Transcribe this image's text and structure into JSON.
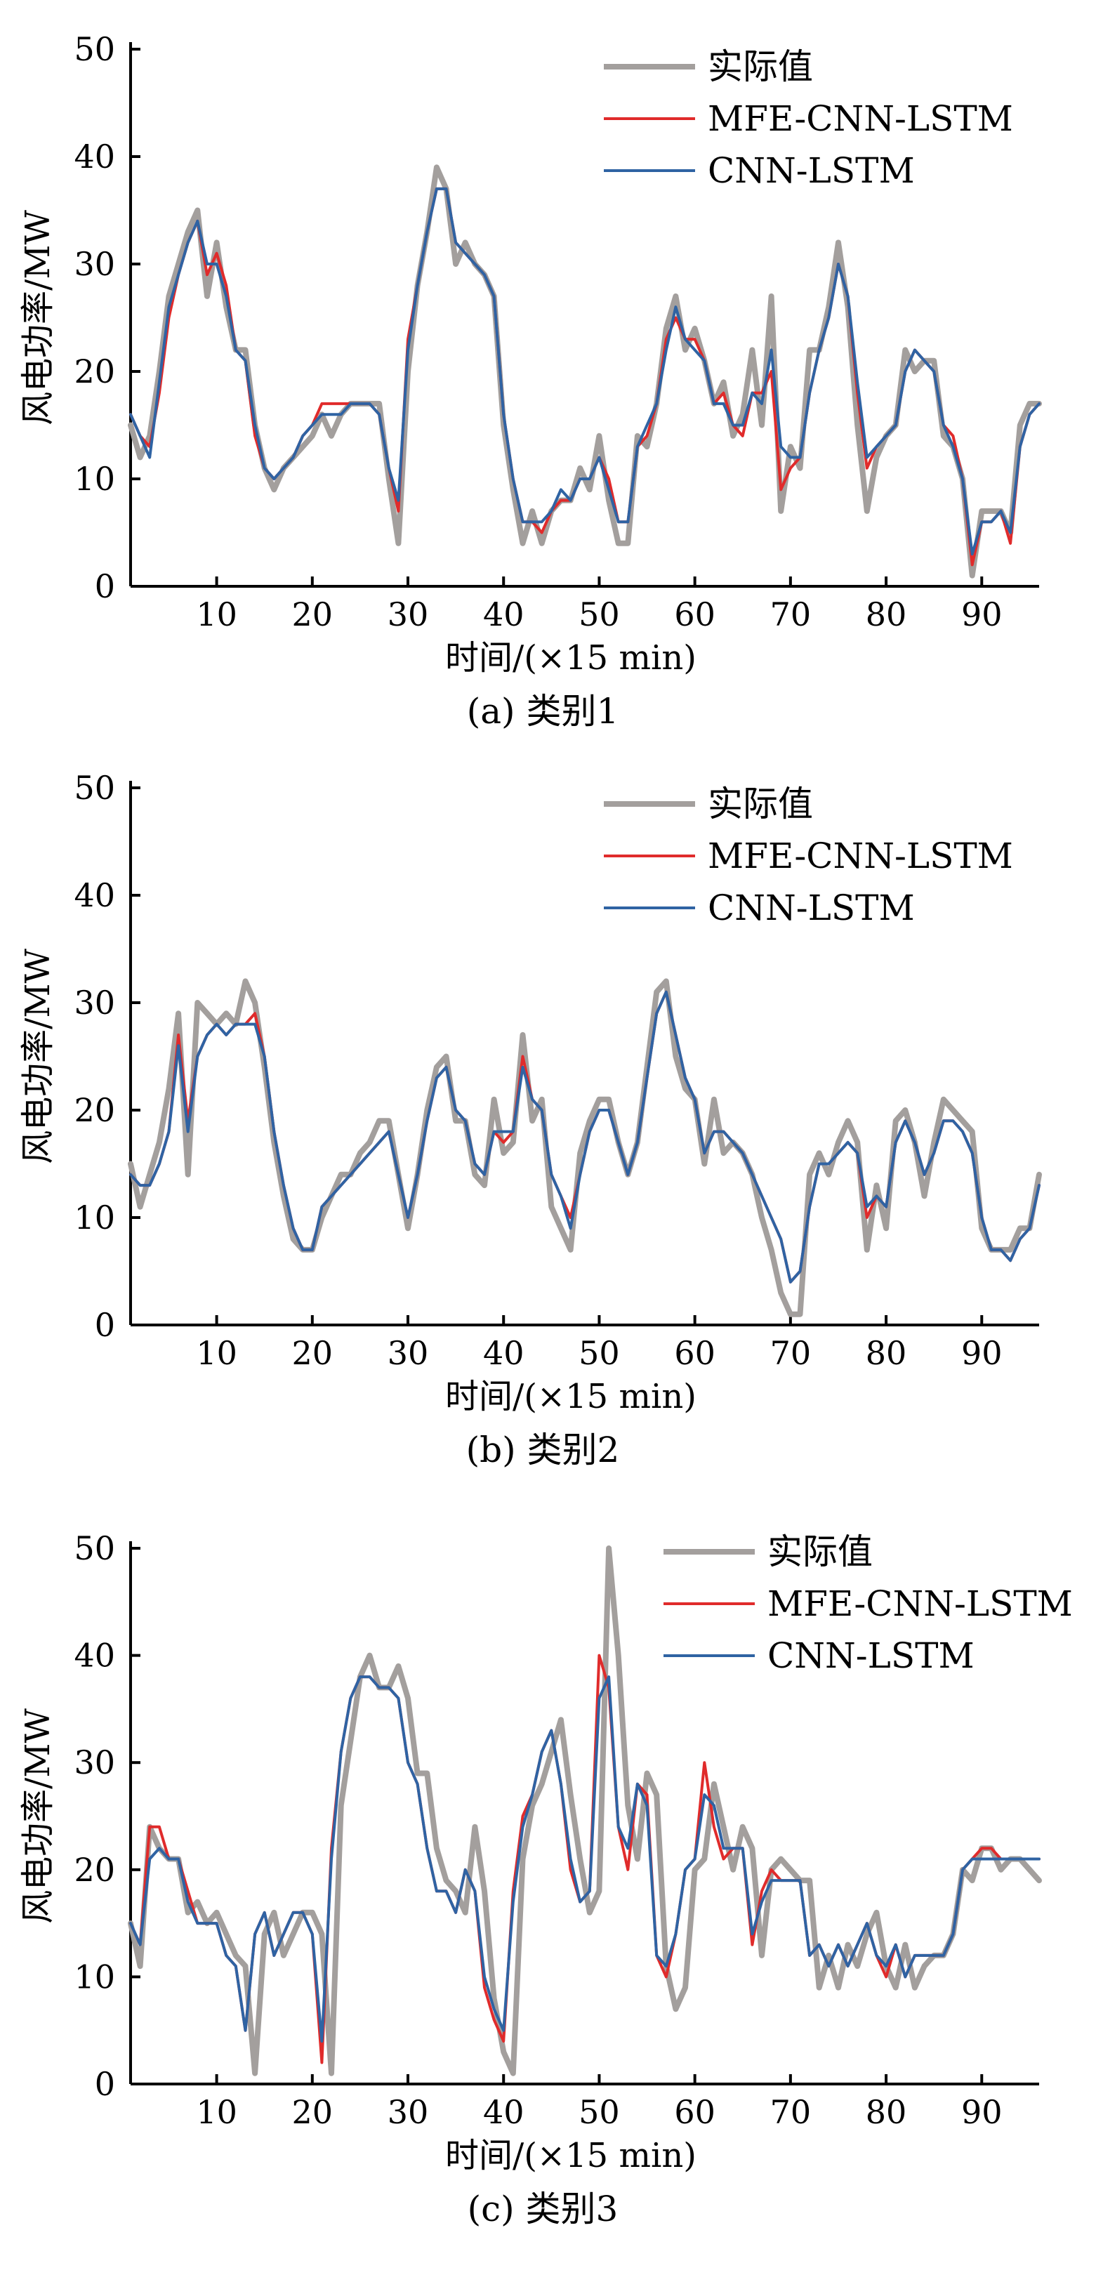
{
  "figure": {
    "captions": [
      "(a) 类别1",
      "(b) 类别2",
      "(c) 类别3"
    ]
  },
  "colors": {
    "actual": "#a39f9d",
    "mfe": "#e02b2b",
    "cnn": "#2f63a3"
  },
  "chart_data": [
    {
      "type": "line",
      "caption": "(a) 类别1",
      "xlabel": "时间/(×15 min)",
      "ylabel": "风电功率/MW",
      "xlim": [
        1,
        96
      ],
      "ylim": [
        0,
        50
      ],
      "xticks": [
        10,
        20,
        30,
        40,
        50,
        60,
        70,
        80,
        90
      ],
      "yticks": [
        0,
        10,
        20,
        30,
        40,
        50
      ],
      "legend": "top-right",
      "grid": false,
      "x": [
        1,
        2,
        3,
        4,
        5,
        6,
        7,
        8,
        9,
        10,
        11,
        12,
        13,
        14,
        15,
        16,
        17,
        18,
        19,
        20,
        21,
        22,
        23,
        24,
        25,
        26,
        27,
        28,
        29,
        30,
        31,
        32,
        33,
        34,
        35,
        36,
        37,
        38,
        39,
        40,
        41,
        42,
        43,
        44,
        45,
        46,
        47,
        48,
        49,
        50,
        51,
        52,
        53,
        54,
        55,
        56,
        57,
        58,
        59,
        60,
        61,
        62,
        63,
        64,
        65,
        66,
        67,
        68,
        69,
        70,
        71,
        72,
        73,
        74,
        75,
        76,
        77,
        78,
        79,
        80,
        81,
        82,
        83,
        84,
        85,
        86,
        87,
        88,
        89,
        90,
        91,
        92,
        93,
        94,
        95,
        96
      ],
      "series": [
        {
          "name": "实际值",
          "values": [
            15,
            12,
            14,
            20,
            27,
            30,
            33,
            35,
            27,
            32,
            26,
            22,
            22,
            15,
            11,
            9,
            11,
            12,
            13,
            14,
            16,
            14,
            16,
            17,
            17,
            17,
            17,
            10,
            4,
            20,
            28,
            33,
            39,
            37,
            30,
            32,
            30,
            29,
            27,
            15,
            9,
            4,
            7,
            4,
            7,
            8,
            8,
            11,
            9,
            14,
            8,
            4,
            4,
            14,
            13,
            17,
            24,
            27,
            22,
            24,
            21,
            17,
            19,
            14,
            16,
            22,
            15,
            27,
            7,
            13,
            11,
            22,
            22,
            26,
            32,
            26,
            15,
            7,
            12,
            14,
            15,
            22,
            20,
            21,
            21,
            14,
            13,
            10,
            1,
            7,
            7,
            7,
            5,
            15,
            17,
            17
          ]
        },
        {
          "name": "MFE-CNN-LSTM",
          "values": [
            16,
            14,
            13,
            18,
            25,
            29,
            32,
            34,
            29,
            31,
            28,
            22,
            21,
            14,
            11,
            10,
            11,
            12,
            14,
            15,
            17,
            17,
            17,
            17,
            17,
            17,
            16,
            11,
            7,
            23,
            28,
            33,
            37,
            37,
            32,
            31,
            30,
            29,
            27,
            16,
            10,
            6,
            6,
            5,
            7,
            8,
            8,
            10,
            10,
            12,
            10,
            6,
            6,
            13,
            14,
            17,
            23,
            25,
            23,
            23,
            21,
            17,
            18,
            15,
            14,
            18,
            18,
            20,
            9,
            11,
            12,
            18,
            22,
            25,
            30,
            27,
            18,
            11,
            13,
            14,
            15,
            20,
            22,
            21,
            20,
            15,
            14,
            10,
            2,
            6,
            6,
            7,
            4,
            13,
            16,
            17
          ]
        },
        {
          "name": "CNN-LSTM",
          "values": [
            16,
            14,
            12,
            19,
            26,
            29,
            32,
            34,
            30,
            30,
            27,
            22,
            21,
            15,
            11,
            10,
            11,
            12,
            14,
            15,
            16,
            16,
            16,
            17,
            17,
            17,
            16,
            11,
            8,
            22,
            28,
            33,
            37,
            37,
            32,
            31,
            30,
            29,
            27,
            16,
            10,
            6,
            6,
            6,
            7,
            9,
            8,
            10,
            10,
            12,
            9,
            6,
            6,
            13,
            15,
            17,
            22,
            26,
            23,
            22,
            21,
            17,
            17,
            15,
            15,
            18,
            17,
            22,
            13,
            12,
            12,
            18,
            22,
            25,
            30,
            27,
            19,
            12,
            13,
            14,
            15,
            20,
            22,
            21,
            20,
            15,
            13,
            10,
            3,
            6,
            6,
            7,
            5,
            13,
            16,
            17
          ]
        }
      ]
    },
    {
      "type": "line",
      "caption": "(b) 类别2",
      "xlabel": "时间/(×15 min)",
      "ylabel": "风电功率/MW",
      "xlim": [
        1,
        96
      ],
      "ylim": [
        0,
        50
      ],
      "xticks": [
        10,
        20,
        30,
        40,
        50,
        60,
        70,
        80,
        90
      ],
      "yticks": [
        0,
        10,
        20,
        30,
        40,
        50
      ],
      "legend": "top-right",
      "grid": false,
      "x": [
        1,
        2,
        3,
        4,
        5,
        6,
        7,
        8,
        9,
        10,
        11,
        12,
        13,
        14,
        15,
        16,
        17,
        18,
        19,
        20,
        21,
        22,
        23,
        24,
        25,
        26,
        27,
        28,
        29,
        30,
        31,
        32,
        33,
        34,
        35,
        36,
        37,
        38,
        39,
        40,
        41,
        42,
        43,
        44,
        45,
        46,
        47,
        48,
        49,
        50,
        51,
        52,
        53,
        54,
        55,
        56,
        57,
        58,
        59,
        60,
        61,
        62,
        63,
        64,
        65,
        66,
        67,
        68,
        69,
        70,
        71,
        72,
        73,
        74,
        75,
        76,
        77,
        78,
        79,
        80,
        81,
        82,
        83,
        84,
        85,
        86,
        87,
        88,
        89,
        90,
        91,
        92,
        93,
        94,
        95,
        96
      ],
      "series": [
        {
          "name": "实际值",
          "values": [
            15,
            11,
            14,
            17,
            22,
            29,
            14,
            30,
            29,
            28,
            29,
            28,
            32,
            30,
            24,
            17,
            12,
            8,
            7,
            7,
            10,
            12,
            14,
            14,
            16,
            17,
            19,
            19,
            14,
            9,
            14,
            20,
            24,
            25,
            19,
            19,
            14,
            13,
            21,
            16,
            17,
            27,
            19,
            21,
            11,
            9,
            7,
            16,
            19,
            21,
            21,
            17,
            14,
            17,
            24,
            31,
            32,
            25,
            22,
            21,
            15,
            21,
            16,
            17,
            16,
            14,
            10,
            7,
            3,
            1,
            1,
            14,
            16,
            14,
            17,
            19,
            17,
            7,
            13,
            9,
            19,
            20,
            17,
            12,
            17,
            21,
            20,
            19,
            18,
            9,
            7,
            7,
            7,
            9,
            9,
            14
          ]
        },
        {
          "name": "MFE-CNN-LSTM",
          "values": [
            14,
            13,
            13,
            15,
            18,
            27,
            19,
            25,
            27,
            28,
            27,
            28,
            28,
            29,
            25,
            18,
            13,
            9,
            7,
            7,
            11,
            12,
            13,
            14,
            15,
            16,
            17,
            18,
            14,
            10,
            14,
            19,
            23,
            24,
            20,
            19,
            15,
            14,
            18,
            17,
            18,
            25,
            21,
            20,
            14,
            12,
            10,
            14,
            18,
            20,
            20,
            17,
            14,
            17,
            23,
            29,
            31,
            27,
            23,
            21,
            16,
            18,
            18,
            17,
            16,
            14,
            12,
            10,
            8,
            4,
            5,
            11,
            15,
            15,
            16,
            17,
            16,
            10,
            12,
            11,
            17,
            19,
            17,
            14,
            16,
            19,
            19,
            18,
            16,
            10,
            7,
            7,
            6,
            8,
            9,
            13
          ]
        },
        {
          "name": "CNN-LSTM",
          "values": [
            14,
            13,
            13,
            15,
            18,
            26,
            18,
            25,
            27,
            28,
            27,
            28,
            28,
            28,
            25,
            18,
            13,
            9,
            7,
            7,
            11,
            12,
            13,
            14,
            15,
            16,
            17,
            18,
            14,
            10,
            14,
            19,
            23,
            24,
            20,
            19,
            15,
            14,
            18,
            18,
            18,
            24,
            21,
            20,
            14,
            12,
            9,
            14,
            18,
            20,
            20,
            17,
            14,
            17,
            23,
            29,
            31,
            27,
            23,
            21,
            16,
            18,
            18,
            17,
            16,
            14,
            12,
            10,
            8,
            4,
            5,
            11,
            15,
            15,
            16,
            17,
            16,
            11,
            12,
            11,
            17,
            19,
            17,
            14,
            16,
            19,
            19,
            18,
            16,
            10,
            7,
            7,
            6,
            8,
            9,
            13
          ]
        }
      ]
    },
    {
      "type": "line",
      "caption": "(c) 类别3",
      "xlabel": "时间/(×15 min)",
      "ylabel": "风电功率/MW",
      "xlim": [
        1,
        96
      ],
      "ylim": [
        0,
        50
      ],
      "xticks": [
        10,
        20,
        30,
        40,
        50,
        60,
        70,
        80,
        90
      ],
      "yticks": [
        0,
        10,
        20,
        30,
        40,
        50
      ],
      "legend": "top-right",
      "grid": false,
      "x": [
        1,
        2,
        3,
        4,
        5,
        6,
        7,
        8,
        9,
        10,
        11,
        12,
        13,
        14,
        15,
        16,
        17,
        18,
        19,
        20,
        21,
        22,
        23,
        24,
        25,
        26,
        27,
        28,
        29,
        30,
        31,
        32,
        33,
        34,
        35,
        36,
        37,
        38,
        39,
        40,
        41,
        42,
        43,
        44,
        45,
        46,
        47,
        48,
        49,
        50,
        51,
        52,
        53,
        54,
        55,
        56,
        57,
        58,
        59,
        60,
        61,
        62,
        63,
        64,
        65,
        66,
        67,
        68,
        69,
        70,
        71,
        72,
        73,
        74,
        75,
        76,
        77,
        78,
        79,
        80,
        81,
        82,
        83,
        84,
        85,
        86,
        87,
        88,
        89,
        90,
        91,
        92,
        93,
        94,
        95,
        96
      ],
      "series": [
        {
          "name": "实际值",
          "values": [
            15,
            11,
            24,
            22,
            21,
            21,
            16,
            17,
            15,
            16,
            14,
            12,
            11,
            1,
            14,
            16,
            12,
            14,
            16,
            16,
            14,
            1,
            26,
            32,
            38,
            40,
            37,
            37,
            39,
            36,
            29,
            29,
            22,
            19,
            18,
            16,
            24,
            18,
            8,
            3,
            1,
            21,
            26,
            28,
            31,
            34,
            27,
            21,
            16,
            18,
            50,
            40,
            26,
            21,
            29,
            27,
            11,
            7,
            9,
            20,
            21,
            28,
            24,
            20,
            24,
            22,
            12,
            20,
            21,
            20,
            19,
            19,
            9,
            12,
            9,
            13,
            11,
            14,
            16,
            11,
            9,
            13,
            9,
            11,
            12,
            12,
            14,
            20,
            19,
            22,
            22,
            20,
            21,
            21,
            20,
            19
          ]
        },
        {
          "name": "MFE-CNN-LSTM",
          "values": [
            15,
            13,
            24,
            24,
            21,
            21,
            18,
            15,
            15,
            15,
            12,
            11,
            5,
            14,
            16,
            12,
            14,
            16,
            16,
            14,
            2,
            22,
            31,
            36,
            38,
            38,
            37,
            37,
            36,
            30,
            28,
            22,
            18,
            18,
            16,
            20,
            18,
            9,
            6,
            4,
            18,
            25,
            27,
            31,
            33,
            28,
            20,
            17,
            18,
            40,
            37,
            24,
            20,
            28,
            27,
            12,
            10,
            14,
            20,
            21,
            30,
            24,
            21,
            22,
            22,
            13,
            18,
            20,
            19,
            19,
            19,
            12,
            13,
            11,
            13,
            11,
            13,
            15,
            12,
            10,
            13,
            10,
            12,
            12,
            12,
            12,
            14,
            20,
            21,
            22,
            22,
            21,
            21,
            21,
            21,
            21
          ]
        },
        {
          "name": "CNN-LSTM",
          "values": [
            15,
            13,
            21,
            22,
            21,
            21,
            17,
            15,
            15,
            15,
            12,
            11,
            5,
            14,
            16,
            12,
            14,
            16,
            16,
            14,
            4,
            21,
            31,
            36,
            38,
            38,
            37,
            37,
            36,
            30,
            28,
            22,
            18,
            18,
            16,
            20,
            18,
            10,
            7,
            5,
            17,
            24,
            27,
            31,
            33,
            28,
            21,
            17,
            18,
            36,
            38,
            24,
            22,
            28,
            26,
            12,
            11,
            14,
            20,
            21,
            27,
            26,
            22,
            22,
            22,
            14,
            17,
            19,
            19,
            19,
            19,
            12,
            13,
            11,
            13,
            11,
            13,
            15,
            12,
            11,
            13,
            10,
            12,
            12,
            12,
            12,
            14,
            20,
            21,
            21,
            21,
            21,
            21,
            21,
            21,
            21
          ]
        }
      ]
    }
  ]
}
